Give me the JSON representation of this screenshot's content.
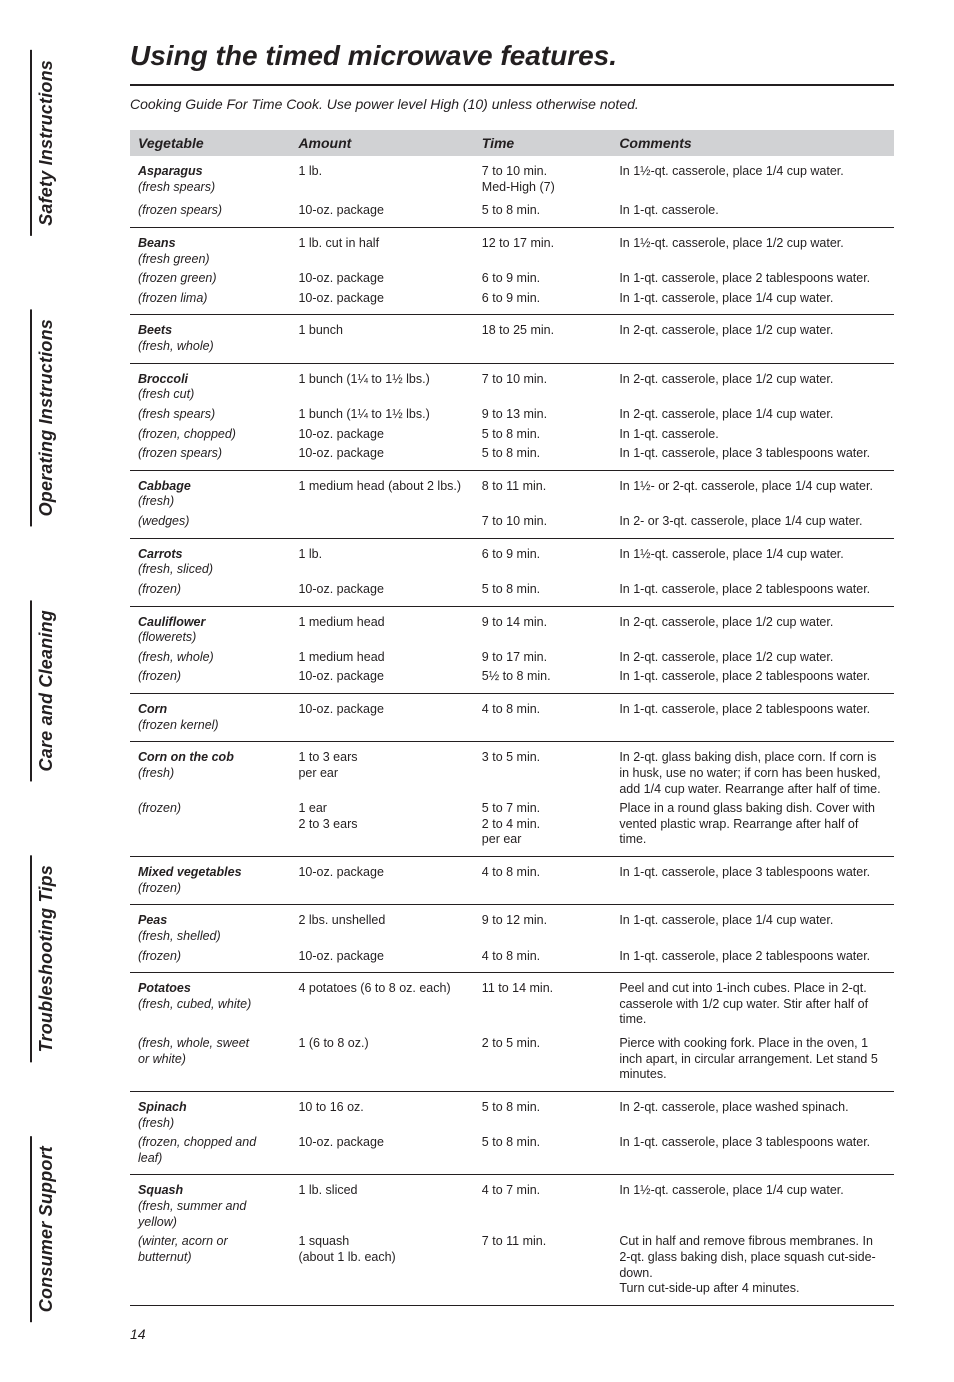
{
  "page_number": "14",
  "title": "Using the timed microwave features.",
  "subtitle": "Cooking Guide For Time Cook. Use power level High (10) unless otherwise noted.",
  "side_tabs": [
    "Safety Instructions",
    "Operating Instructions",
    "Care and Cleaning",
    "Troubleshooting Tips",
    "Consumer Support"
  ],
  "columns": [
    "Vegetable",
    "Amount",
    "Time",
    "Comments"
  ],
  "groups": [
    {
      "name": "Asparagus",
      "rows": [
        {
          "sub": "(fresh spears)",
          "amount": "1 lb.",
          "time": "7 to 10 min.\nMed-High (7)",
          "comment": "In 1½-qt. casserole, place 1/4 cup water."
        },
        {
          "sub": "(frozen spears)",
          "amount": "10-oz. package",
          "time": "5 to 8 min.",
          "comment": "In 1-qt. casserole.",
          "gap": true
        }
      ]
    },
    {
      "name": "Beans",
      "rows": [
        {
          "sub": "(fresh green)",
          "amount": "1 lb. cut in half",
          "time": "12 to 17 min.",
          "comment": "In 1½-qt. casserole, place 1/2 cup water."
        },
        {
          "sub": "(frozen green)",
          "amount": "10-oz. package",
          "time": "6 to 9 min.",
          "comment": "In 1-qt. casserole, place 2 tablespoons water."
        },
        {
          "sub": "(frozen lima)",
          "amount": "10-oz. package",
          "time": "6 to 9 min.",
          "comment": "In 1-qt. casserole, place 1/4 cup water."
        }
      ]
    },
    {
      "name": "Beets",
      "rows": [
        {
          "sub": "(fresh, whole)",
          "amount": "1 bunch",
          "time": "18 to 25 min.",
          "comment": "In 2-qt. casserole, place 1/2 cup water."
        }
      ]
    },
    {
      "name": "Broccoli",
      "rows": [
        {
          "sub": "(fresh cut)",
          "amount": "1 bunch (1¼ to 1½ lbs.)",
          "time": "7 to 10 min.",
          "comment": "In 2-qt. casserole, place 1/2 cup water."
        },
        {
          "sub": "(fresh spears)",
          "amount": "1 bunch (1¼ to 1½ lbs.)",
          "time": "9 to 13 min.",
          "comment": "In 2-qt. casserole, place 1/4 cup water."
        },
        {
          "sub": "(frozen, chopped)",
          "amount": "10-oz. package",
          "time": "5 to 8 min.",
          "comment": "In 1-qt. casserole."
        },
        {
          "sub": "(frozen spears)",
          "amount": "10-oz. package",
          "time": "5 to 8 min.",
          "comment": "In 1-qt. casserole, place 3 tablespoons water."
        }
      ]
    },
    {
      "name": "Cabbage",
      "rows": [
        {
          "sub": "(fresh)",
          "amount": "1 medium head (about 2 lbs.)",
          "time": "8 to 11 min.",
          "comment": "In 1½- or 2-qt. casserole, place 1/4 cup water."
        },
        {
          "sub": "(wedges)",
          "amount": "",
          "time": "7 to 10 min.",
          "comment": "In 2- or 3-qt. casserole, place 1/4 cup water."
        }
      ]
    },
    {
      "name": "Carrots",
      "rows": [
        {
          "sub": "(fresh, sliced)",
          "amount": "1 lb.",
          "time": "6 to 9 min.",
          "comment": "In 1½-qt. casserole, place 1/4 cup water."
        },
        {
          "sub": "(frozen)",
          "amount": "10-oz. package",
          "time": "5 to 8 min.",
          "comment": "In 1-qt. casserole, place 2 tablespoons water."
        }
      ]
    },
    {
      "name": "Cauliflower",
      "rows": [
        {
          "sub": "(flowerets)",
          "amount": "1 medium head",
          "time": "9 to 14 min.",
          "comment": "In 2-qt. casserole, place 1/2 cup water."
        },
        {
          "sub": "(fresh, whole)",
          "amount": "1 medium head",
          "time": "9 to 17 min.",
          "comment": "In 2-qt. casserole, place 1/2 cup water."
        },
        {
          "sub": "(frozen)",
          "amount": "10-oz. package",
          "time": "5½ to 8 min.",
          "comment": "In 1-qt. casserole, place 2 tablespoons water."
        }
      ]
    },
    {
      "name": "Corn",
      "rows": [
        {
          "sub": "(frozen kernel)",
          "amount": "10-oz. package",
          "time": "4 to 8 min.",
          "comment": "In 1-qt. casserole, place 2 tablespoons water."
        }
      ]
    },
    {
      "name": "Corn on the cob",
      "rows": [
        {
          "sub": "(fresh)",
          "amount": "1 to 3 ears\nper ear",
          "time": "3 to 5 min.",
          "comment": "In 2-qt. glass baking dish, place corn. If corn is in husk, use no water; if corn has been husked, add 1/4 cup water. Rearrange after half of time."
        },
        {
          "sub": "(frozen)",
          "amount": "1 ear\n2 to 3 ears",
          "time": "5 to 7 min.\n2 to 4 min.\nper ear",
          "comment": "Place in a round glass baking dish. Cover with vented plastic wrap. Rearrange after half of time."
        }
      ]
    },
    {
      "name": "Mixed vegetables",
      "rows": [
        {
          "sub": "(frozen)",
          "amount": "10-oz. package",
          "time": "4 to 8 min.",
          "comment": "In 1-qt. casserole, place 3 tablespoons water."
        }
      ]
    },
    {
      "name": "Peas",
      "rows": [
        {
          "sub": "(fresh, shelled)",
          "amount": "2 lbs. unshelled",
          "time": "9 to 12 min.",
          "comment": "In 1-qt. casserole, place 1/4 cup water."
        },
        {
          "sub": "(frozen)",
          "amount": "10-oz. package",
          "time": "4 to 8 min.",
          "comment": "In 1-qt. casserole, place 2 tablespoons water."
        }
      ]
    },
    {
      "name": "Potatoes",
      "rows": [
        {
          "sub": "(fresh, cubed, white)",
          "amount": "4 potatoes (6 to 8 oz. each)",
          "time": "11 to 14 min.",
          "comment": "Peel and cut into 1-inch cubes. Place in 2-qt. casserole with 1/2 cup water. Stir after half of time."
        },
        {
          "sub": "(fresh, whole, sweet\nor white)",
          "amount": "1 (6 to 8 oz.)",
          "time": "2 to 5 min.",
          "comment": "Pierce with cooking fork. Place in the oven, 1 inch apart, in circular arrangement. Let stand 5 minutes.",
          "gap": true
        }
      ]
    },
    {
      "name": "Spinach",
      "rows": [
        {
          "sub": "(fresh)",
          "amount": "10 to 16 oz.",
          "time": "5 to 8 min.",
          "comment": "In 2-qt. casserole, place washed spinach."
        },
        {
          "sub": "(frozen, chopped and leaf)",
          "amount": "10-oz. package",
          "time": "5 to 8 min.",
          "comment": "In 1-qt. casserole, place 3 tablespoons water."
        }
      ]
    },
    {
      "name": "Squash",
      "rows": [
        {
          "sub": "(fresh, summer and yellow)",
          "amount": "1 lb. sliced",
          "time": "4 to 7 min.",
          "comment": "In 1½-qt. casserole, place 1/4 cup water."
        },
        {
          "sub": "(winter, acorn or butternut)",
          "amount": "1 squash\n(about 1 lb. each)",
          "time": "7 to 11 min.",
          "comment": "Cut in half and remove fibrous membranes. In 2-qt. glass baking dish, place squash cut-side-down.\nTurn cut-side-up after 4 minutes."
        }
      ]
    }
  ]
}
